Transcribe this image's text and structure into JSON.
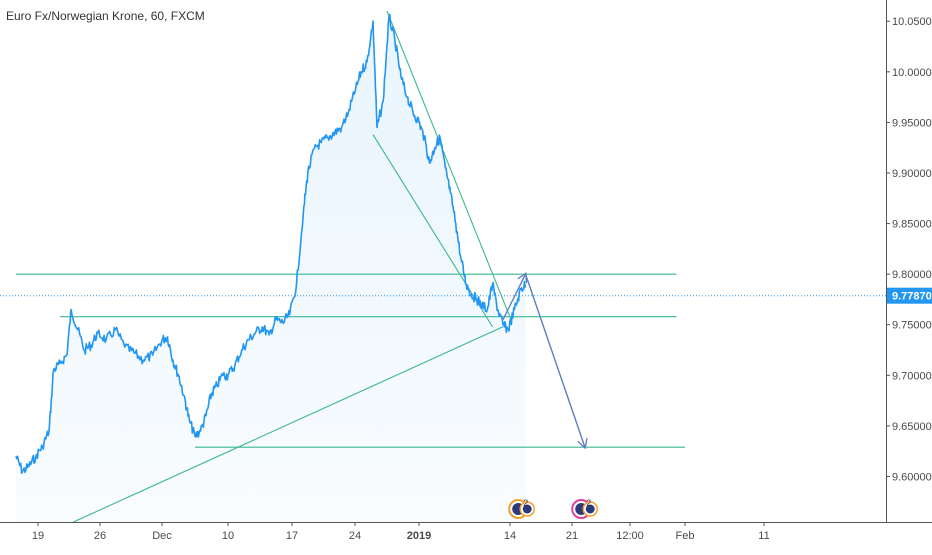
{
  "chart_data": {
    "type": "line",
    "title": "Euro Fx/Norwegian Krone, 60, FXCM",
    "xlabel": "",
    "ylabel": "",
    "ylim": [
      9.555,
      10.071
    ],
    "x_ticks": [
      {
        "label": "19",
        "date": "2018-11-19"
      },
      {
        "label": "26",
        "date": "2018-11-26"
      },
      {
        "label": "Dec",
        "date": "2018-12-01"
      },
      {
        "label": "10",
        "date": "2018-12-10"
      },
      {
        "label": "17",
        "date": "2018-12-17"
      },
      {
        "label": "24",
        "date": "2018-12-24"
      },
      {
        "label": "2019",
        "date": "2019-01-01"
      },
      {
        "label": "14",
        "date": "2019-01-14"
      },
      {
        "label": "21",
        "date": "2019-01-21"
      },
      {
        "label": "12:00",
        "date": "2019-01-25T12:00"
      },
      {
        "label": "Feb",
        "date": "2019-02-01"
      },
      {
        "label": "11",
        "date": "2019-02-11"
      }
    ],
    "y_ticks": [
      "9.60000",
      "9.65000",
      "9.70000",
      "9.75000",
      "9.80000",
      "9.85000",
      "9.90000",
      "9.95000",
      "10.00000",
      "10.05000"
    ],
    "series": [
      {
        "name": "",
        "color": "#2196f3",
        "points": [
          [
            "2018-11-16T12:00",
            9.62
          ],
          [
            "2018-11-17T06:00",
            9.605
          ],
          [
            "2018-11-18T00:00",
            9.61
          ],
          [
            "2018-11-18T18:00",
            9.62
          ],
          [
            "2018-11-19T12:00",
            9.63
          ],
          [
            "2018-11-20T06:00",
            9.645
          ],
          [
            "2018-11-20T18:00",
            9.705
          ],
          [
            "2018-11-21T12:00",
            9.712
          ],
          [
            "2018-11-22T06:00",
            9.72
          ],
          [
            "2018-11-22T18:00",
            9.765
          ],
          [
            "2018-11-23T12:00",
            9.745
          ],
          [
            "2018-11-24T06:00",
            9.725
          ],
          [
            "2018-11-25T00:00",
            9.73
          ],
          [
            "2018-11-25T18:00",
            9.742
          ],
          [
            "2018-11-26T12:00",
            9.735
          ],
          [
            "2018-11-27T06:00",
            9.745
          ],
          [
            "2018-11-28T00:00",
            9.728
          ],
          [
            "2018-11-28T18:00",
            9.722
          ],
          [
            "2018-11-29T12:00",
            9.715
          ],
          [
            "2018-11-30T06:00",
            9.72
          ],
          [
            "2018-12-01T00:00",
            9.735
          ],
          [
            "2018-12-01T18:00",
            9.738
          ],
          [
            "2018-12-02T12:00",
            9.715
          ],
          [
            "2018-12-03T06:00",
            9.7
          ],
          [
            "2018-12-04T00:00",
            9.68
          ],
          [
            "2018-12-04T18:00",
            9.655
          ],
          [
            "2018-12-05T12:00",
            9.64
          ],
          [
            "2018-12-06T06:00",
            9.645
          ],
          [
            "2018-12-07T00:00",
            9.66
          ],
          [
            "2018-12-07T18:00",
            9.682
          ],
          [
            "2018-12-08T12:00",
            9.69
          ],
          [
            "2018-12-09T06:00",
            9.7
          ],
          [
            "2018-12-10T00:00",
            9.7
          ],
          [
            "2018-12-10T18:00",
            9.71
          ],
          [
            "2018-12-11T12:00",
            9.725
          ],
          [
            "2018-12-12T06:00",
            9.735
          ],
          [
            "2018-12-13T00:00",
            9.742
          ],
          [
            "2018-12-13T18:00",
            9.748
          ],
          [
            "2018-12-14T12:00",
            9.74
          ],
          [
            "2018-12-15T06:00",
            9.755
          ],
          [
            "2018-12-16T00:00",
            9.752
          ],
          [
            "2018-12-16T18:00",
            9.76
          ],
          [
            "2018-12-17T12:00",
            9.79
          ],
          [
            "2018-12-18T06:00",
            9.86
          ],
          [
            "2018-12-18T18:00",
            9.9
          ],
          [
            "2018-12-19T12:00",
            9.925
          ],
          [
            "2018-12-20T06:00",
            9.93
          ],
          [
            "2018-12-21T00:00",
            9.935
          ],
          [
            "2018-12-21T18:00",
            9.94
          ],
          [
            "2018-12-22T12:00",
            9.945
          ],
          [
            "2018-12-23T06:00",
            9.96
          ],
          [
            "2018-12-24T00:00",
            9.98
          ],
          [
            "2018-12-24T18:00",
            10.0
          ],
          [
            "2018-12-25T12:00",
            10.01
          ],
          [
            "2018-12-26T06:00",
            10.05
          ],
          [
            "2018-12-26T18:00",
            9.945
          ],
          [
            "2018-12-27T12:00",
            9.97
          ],
          [
            "2018-12-28T06:00",
            10.055
          ],
          [
            "2018-12-29T00:00",
            10.03
          ],
          [
            "2018-12-29T18:00",
            9.995
          ],
          [
            "2018-12-30T12:00",
            9.975
          ],
          [
            "2018-12-31T06:00",
            9.96
          ],
          [
            "2019-01-01T00:00",
            9.95
          ],
          [
            "2019-01-01T18:00",
            9.935
          ],
          [
            "2019-01-02T12:00",
            9.91
          ],
          [
            "2019-01-03T06:00",
            9.925
          ],
          [
            "2019-01-04T00:00",
            9.935
          ],
          [
            "2019-01-04T18:00",
            9.905
          ],
          [
            "2019-01-05T12:00",
            9.88
          ],
          [
            "2019-01-06T06:00",
            9.85
          ],
          [
            "2019-01-07T00:00",
            9.815
          ],
          [
            "2019-01-07T18:00",
            9.79
          ],
          [
            "2019-01-08T12:00",
            9.78
          ],
          [
            "2019-01-09T06:00",
            9.775
          ],
          [
            "2019-01-10T00:00",
            9.77
          ],
          [
            "2019-01-10T18:00",
            9.765
          ],
          [
            "2019-01-11T12:00",
            9.79
          ],
          [
            "2019-01-12T06:00",
            9.765
          ],
          [
            "2019-01-13T00:00",
            9.75
          ],
          [
            "2019-01-13T18:00",
            9.745
          ],
          [
            "2019-01-14T12:00",
            9.765
          ],
          [
            "2019-01-15T06:00",
            9.785
          ],
          [
            "2019-01-15T18:00",
            9.79
          ]
        ]
      }
    ],
    "annotations": {
      "horizontal_levels": [
        {
          "y": 9.8,
          "from": "2018-11-16T12:00",
          "to": "2019-01-31T00:00",
          "color": "#3cb88e"
        },
        {
          "y": 9.758,
          "from": "2018-11-21T12:00",
          "to": "2019-01-31T00:00",
          "color": "#3cb88e"
        },
        {
          "y": 9.629,
          "from": "2018-12-05T12:00",
          "to": "2019-02-01T00:00",
          "color": "#3cb88e"
        }
      ],
      "trend_lines": [
        {
          "from": [
            "2018-11-23T00:00",
            9.555
          ],
          "to": [
            "2019-01-13T00:00",
            9.748
          ],
          "color": "#3cb88e"
        },
        {
          "from": [
            "2018-12-28T00:00",
            10.06
          ],
          "to": [
            "2019-01-14T06:00",
            9.752
          ],
          "color": "#3cb88e"
        },
        {
          "from": [
            "2018-12-26T06:00",
            9.938
          ],
          "to": [
            "2019-01-11T12:00",
            9.748
          ],
          "color": "#3cb88e"
        }
      ],
      "arrows": [
        {
          "from": [
            "2019-01-13T00:00",
            9.755
          ],
          "to": [
            "2019-01-15T18:00",
            9.8
          ],
          "color": "#5b7fc1"
        },
        {
          "from": [
            "2019-01-15T18:00",
            9.8
          ],
          "to": [
            "2019-01-22T00:00",
            9.629
          ],
          "color": "#5b7fc1"
        }
      ]
    },
    "current_price": {
      "value": 9.7787,
      "label": "9.77870",
      "color": "#2196f3"
    },
    "grid": false,
    "event_markers": [
      {
        "date": "2019-01-14T06:00",
        "count": "2"
      },
      {
        "date": "2019-01-21T06:00",
        "count": "2"
      }
    ]
  }
}
